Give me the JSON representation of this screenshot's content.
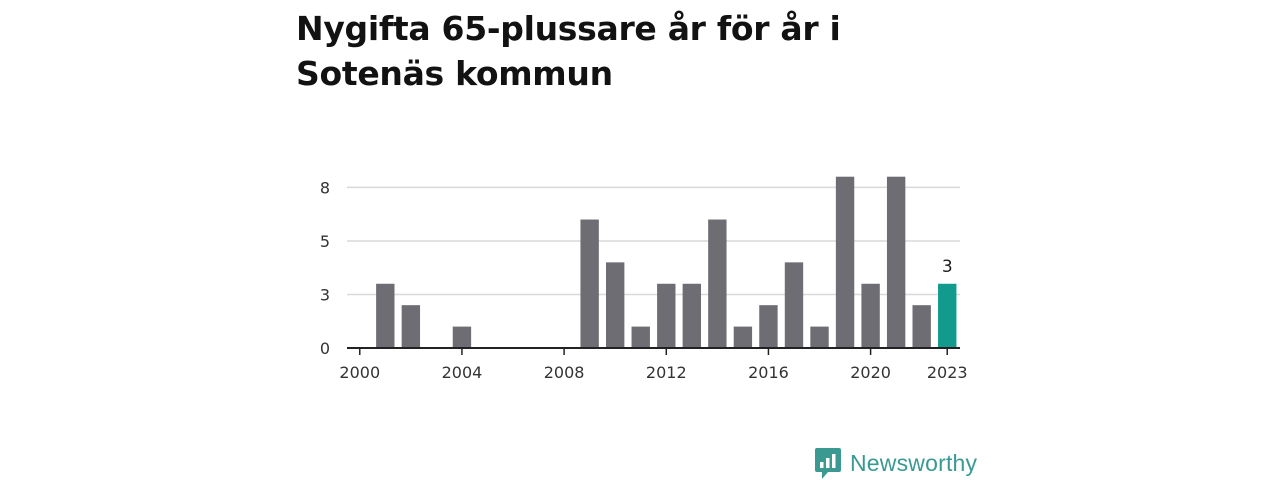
{
  "chart_data": {
    "type": "bar",
    "title": "Nygifta 65-plussare år för år i Sotenäs kommun",
    "x": [
      2000,
      2001,
      2002,
      2003,
      2004,
      2005,
      2006,
      2007,
      2008,
      2009,
      2010,
      2011,
      2012,
      2013,
      2014,
      2015,
      2016,
      2017,
      2018,
      2019,
      2020,
      2021,
      2022,
      2023
    ],
    "values": [
      0,
      3,
      2,
      0,
      1,
      0,
      0,
      0,
      0,
      6,
      4,
      1,
      3,
      3,
      6,
      1,
      2,
      4,
      1,
      8,
      3,
      8,
      2,
      3
    ],
    "x_ticks": [
      "2000",
      "2004",
      "2008",
      "2012",
      "2016",
      "2020",
      "2023"
    ],
    "y_ticks": [
      "0",
      "3",
      "5",
      "8"
    ],
    "y_tick_values": [
      0,
      2.5,
      5,
      7.5
    ],
    "ylim": [
      0,
      8.5
    ],
    "grid": true,
    "highlight": {
      "year": 2023,
      "value_label": "3"
    },
    "colors": {
      "bar": "#6e6d73",
      "highlight": "#129b8d",
      "grid": "#d9d9d9",
      "axis": "#222222"
    }
  },
  "branding": {
    "logo_text": "Newsworthy",
    "logo_icon": "bar-chart-speech-bubble-icon"
  }
}
